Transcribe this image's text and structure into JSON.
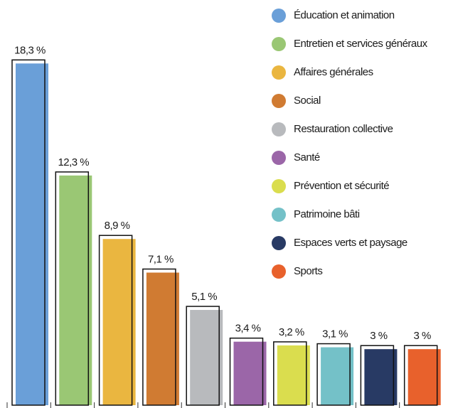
{
  "chart_data": {
    "type": "bar",
    "categories": [
      "Éducation et animation",
      "Entretien et services généraux",
      "Affaires générales",
      "Social",
      "Restauration collective",
      "Santé",
      "Prévention et sécurité",
      "Patrimoine bâti",
      "Espaces verts et paysage",
      "Sports"
    ],
    "values": [
      18.3,
      12.3,
      8.9,
      7.1,
      5.1,
      3.4,
      3.2,
      3.1,
      3,
      3
    ],
    "value_labels": [
      "18,3 %",
      "12,3 %",
      "8,9 %",
      "7,1 %",
      "5,1 %",
      "3,4 %",
      "3,2 %",
      "3,1 %",
      "3 %",
      "3 %"
    ],
    "colors": [
      "#6a9fd8",
      "#9ac774",
      "#eab640",
      "#d07b32",
      "#b8babd",
      "#9b66a8",
      "#dadd4e",
      "#74c1c8",
      "#283a64",
      "#e8612c"
    ],
    "ylim": [
      0,
      21.7
    ],
    "legend": "top-right"
  }
}
